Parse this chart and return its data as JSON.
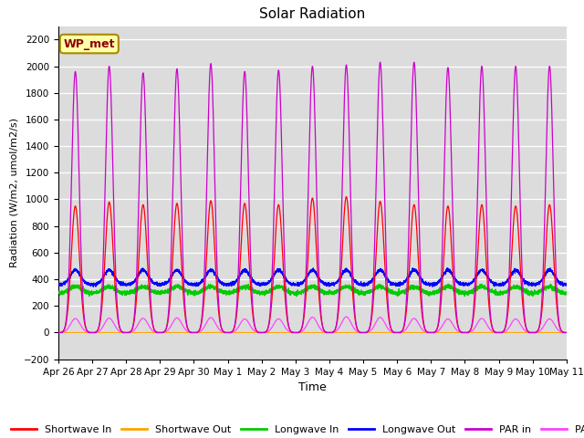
{
  "title": "Solar Radiation",
  "xlabel": "Time",
  "ylabel": "Radiation (W/m2, umol/m2/s)",
  "ylim": [
    -200,
    2300
  ],
  "yticks": [
    -200,
    0,
    200,
    400,
    600,
    800,
    1000,
    1200,
    1400,
    1600,
    1800,
    2000,
    2200
  ],
  "plot_bg_color": "#dcdcdc",
  "fig_bg_color": "#ffffff",
  "station_label": "WP_met",
  "legend_entries": [
    "Shortwave In",
    "Shortwave Out",
    "Longwave In",
    "Longwave Out",
    "PAR in",
    "PAR out"
  ],
  "line_colors": [
    "#ff0000",
    "#ffa500",
    "#00cc00",
    "#0000ff",
    "#cc00cc",
    "#ff44ff"
  ],
  "n_days": 15,
  "tick_labels": [
    "Apr 26",
    "Apr 27",
    "Apr 28",
    "Apr 29",
    "Apr 30",
    "May 1",
    "May 2",
    "May 3",
    "May 4",
    "May 5",
    "May 6",
    "May 7",
    "May 8",
    "May 9",
    "May 10",
    "May 11"
  ],
  "shortwave_in_peaks": [
    950,
    980,
    960,
    970,
    990,
    970,
    960,
    1010,
    1020,
    985,
    960,
    950,
    960,
    950,
    960
  ],
  "par_in_peaks": [
    1960,
    2000,
    1950,
    1980,
    2020,
    1960,
    1970,
    2000,
    2010,
    2030,
    2030,
    1990,
    2000,
    2000,
    2000
  ],
  "par_out_peaks": [
    105,
    108,
    107,
    110,
    112,
    102,
    103,
    115,
    118,
    114,
    106,
    102,
    106,
    102,
    103
  ],
  "longwave_out_base": 360,
  "longwave_out_peak_add": 110,
  "longwave_in_base": 295,
  "longwave_in_peak_add": 50,
  "points_per_day": 288
}
